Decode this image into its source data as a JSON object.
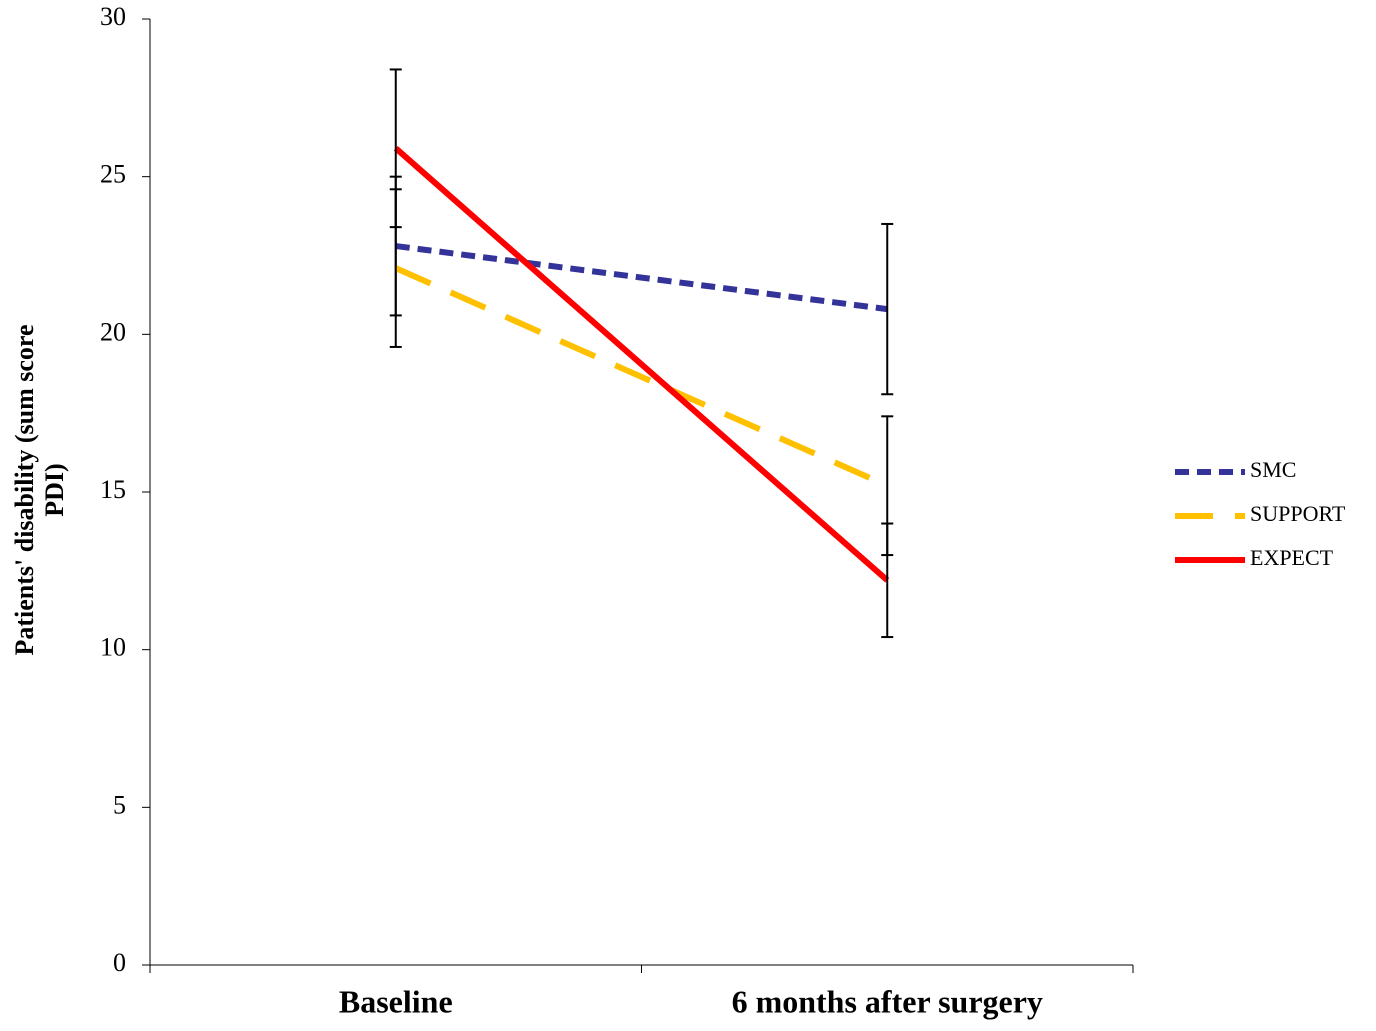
{
  "chart_data": {
    "type": "line",
    "y_label": "Patients' disability (sum score PDI)",
    "categories": [
      "Baseline",
      "6 months after surgery"
    ],
    "series": [
      {
        "name": "SMC",
        "color": "#333399",
        "line_style": "short-dash",
        "values": [
          22.8,
          20.8
        ],
        "errors": [
          2.2,
          2.7
        ]
      },
      {
        "name": "SUPPORT",
        "color": "#FFC000",
        "line_style": "long-dash",
        "values": [
          22.1,
          15.2
        ],
        "errors": [
          2.5,
          2.2
        ]
      },
      {
        "name": "EXPECT",
        "color": "#FF0000",
        "line_style": "solid",
        "values": [
          25.9,
          12.2
        ],
        "errors": [
          2.5,
          1.8
        ]
      }
    ],
    "ylim": [
      0,
      30
    ],
    "yticks": [
      0,
      5,
      10,
      15,
      20,
      25,
      30
    ],
    "legend": "right"
  }
}
